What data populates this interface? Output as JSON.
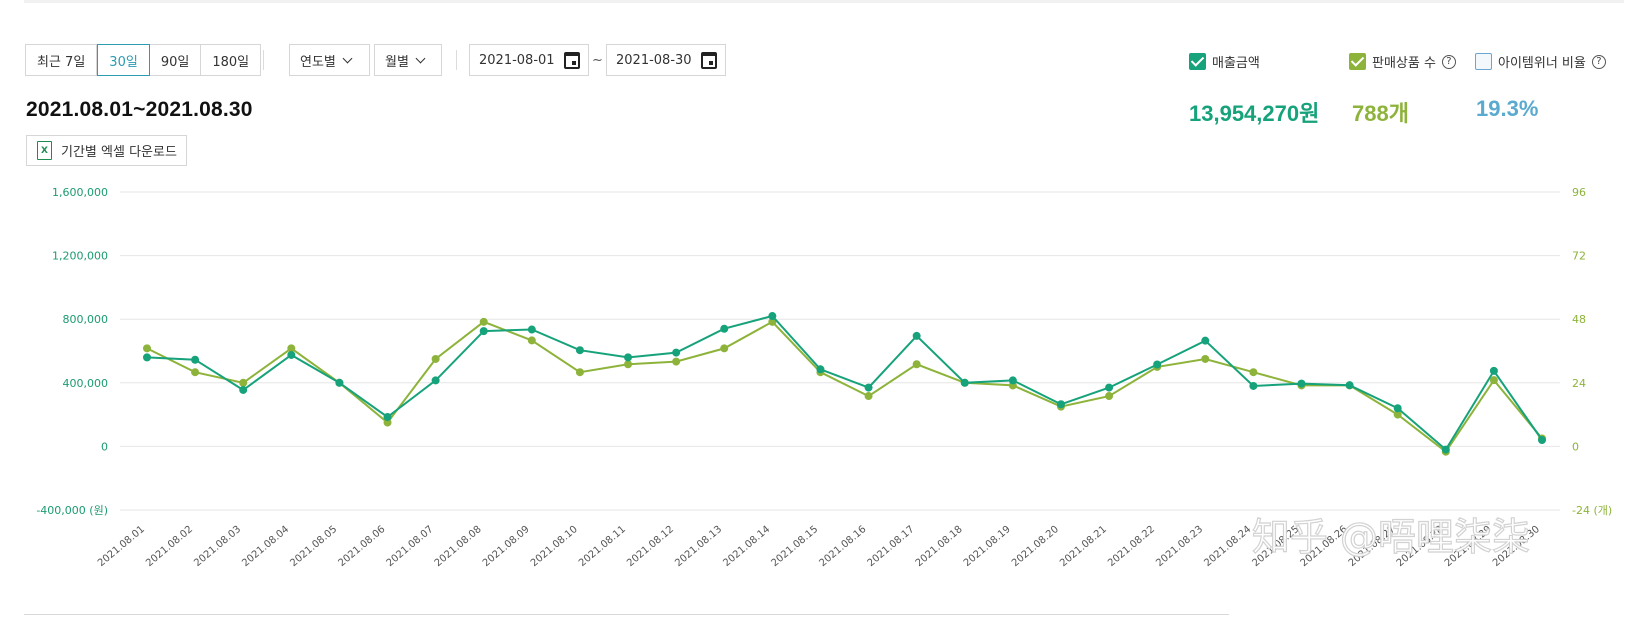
{
  "period_buttons": [
    {
      "label": "최근 7일",
      "active": false
    },
    {
      "label": "30일",
      "active": true
    },
    {
      "label": "90일",
      "active": false
    },
    {
      "label": "180일",
      "active": false
    }
  ],
  "dropdowns": {
    "yearly": "연도별",
    "monthly": "월별"
  },
  "date_range": {
    "start": "2021-08-01",
    "separator": "~",
    "end": "2021-08-30"
  },
  "range_title": "2021.08.01~2021.08.30",
  "excel_button": {
    "label": "기간별 엑셀 다운로드",
    "icon": "excel-file-icon",
    "icon_text": "X"
  },
  "legend": [
    {
      "label": "매출금액",
      "checked": true,
      "color": "#16a27a",
      "help": false
    },
    {
      "label": "판매상품 수",
      "checked": true,
      "color": "#8db33a",
      "help": true
    },
    {
      "label": "아이템위너 비율",
      "checked": false,
      "color": "#6aa6cf",
      "help": true
    }
  ],
  "help_mark": "?",
  "metrics": {
    "sales": {
      "value": "13,954,270원",
      "color": "#16a27a"
    },
    "items": {
      "value": "788개",
      "color": "#8db33a"
    },
    "ratio": {
      "value": "19.3%",
      "color": "#5aa9cf"
    }
  },
  "watermark": "知乎 @唔哩柒柒",
  "chart_data": {
    "type": "line",
    "categories": [
      "2021.08.01",
      "2021.08.02",
      "2021.08.03",
      "2021.08.04",
      "2021.08.05",
      "2021.08.06",
      "2021.08.07",
      "2021.08.08",
      "2021.08.09",
      "2021.08.10",
      "2021.08.11",
      "2021.08.12",
      "2021.08.13",
      "2021.08.14",
      "2021.08.15",
      "2021.08.16",
      "2021.08.17",
      "2021.08.18",
      "2021.08.19",
      "2021.08.20",
      "2021.08.21",
      "2021.08.22",
      "2021.08.23",
      "2021.08.24",
      "2021.08.25",
      "2021.08.26",
      "2021.08.27",
      "2021.08.28",
      "2021.08.29",
      "2021.08.30"
    ],
    "series": [
      {
        "name": "매출금액",
        "axis": "left",
        "color": "#16a27a",
        "values": [
          560000,
          545000,
          355000,
          575000,
          400000,
          185000,
          415000,
          725000,
          735000,
          605000,
          560000,
          590000,
          740000,
          820000,
          485000,
          370000,
          695000,
          400000,
          415000,
          265000,
          370000,
          515000,
          665000,
          380000,
          395000,
          385000,
          240000,
          -20000,
          475000,
          40000
        ]
      },
      {
        "name": "판매상품 수",
        "axis": "right",
        "color": "#8db33a",
        "values": [
          37,
          28,
          24,
          37,
          24,
          9,
          33,
          47,
          40,
          28,
          31,
          32,
          37,
          47,
          28,
          19,
          31,
          24,
          23,
          15,
          19,
          30,
          33,
          28,
          23,
          23,
          12,
          -2,
          25,
          3
        ]
      }
    ],
    "y_left": {
      "ticks": [
        "1,600,000",
        "1,200,000",
        "800,000",
        "400,000",
        "0",
        "-400,000 (원)"
      ],
      "range": [
        -400000,
        1600000
      ]
    },
    "y_right": {
      "ticks": [
        "96",
        "72",
        "48",
        "24",
        "0",
        "-24 (개)"
      ],
      "range": [
        -24,
        96
      ]
    },
    "grid": true
  }
}
